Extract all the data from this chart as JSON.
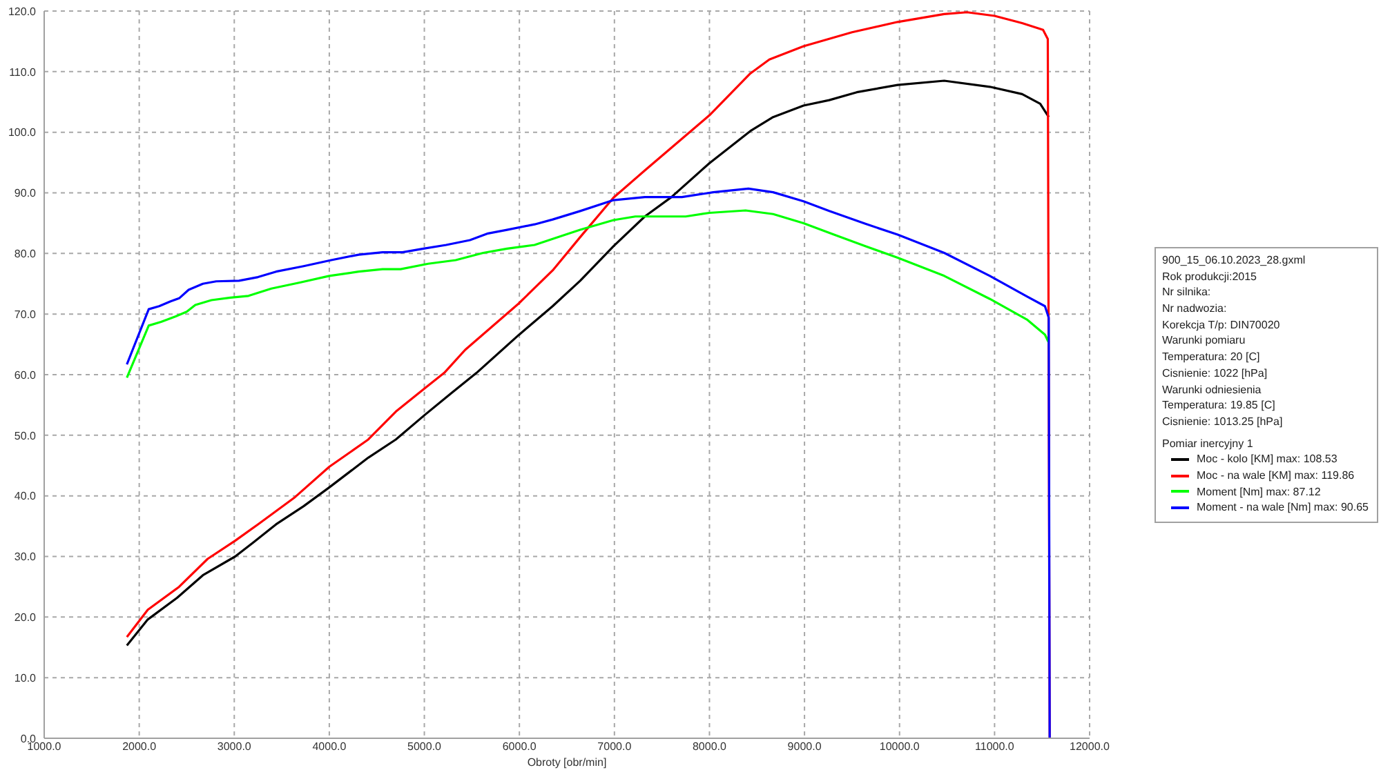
{
  "chart_data": {
    "type": "line",
    "xlabel": "Obroty [obr/min]",
    "xlim": [
      1000,
      12000
    ],
    "xticks": [
      {
        "value": 1000,
        "label": "1000.0"
      },
      {
        "value": 2000,
        "label": "2000.0"
      },
      {
        "value": 3000,
        "label": "3000.0"
      },
      {
        "value": 4000,
        "label": "4000.0"
      },
      {
        "value": 5000,
        "label": "5000.0"
      },
      {
        "value": 6000,
        "label": "6000.0"
      },
      {
        "value": 7000,
        "label": "7000.0"
      },
      {
        "value": 8000,
        "label": "8000.0"
      },
      {
        "value": 9000,
        "label": "9000.0"
      },
      {
        "value": 10000,
        "label": "10000.0"
      },
      {
        "value": 11000,
        "label": "11000.0"
      },
      {
        "value": 12000,
        "label": "12000.0"
      }
    ],
    "ylim": [
      0,
      120
    ],
    "yticks": [
      {
        "value": 0,
        "label": "0.0"
      },
      {
        "value": 10,
        "label": "10.0"
      },
      {
        "value": 20,
        "label": "20.0"
      },
      {
        "value": 30,
        "label": "30.0"
      },
      {
        "value": 40,
        "label": "40.0"
      },
      {
        "value": 50,
        "label": "50.0"
      },
      {
        "value": 60,
        "label": "60.0"
      },
      {
        "value": 70,
        "label": "70.0"
      },
      {
        "value": 80,
        "label": "80.0"
      },
      {
        "value": 90,
        "label": "90.0"
      },
      {
        "value": 100,
        "label": "100.0"
      },
      {
        "value": 110,
        "label": "110.0"
      },
      {
        "value": 120,
        "label": "120.0"
      }
    ],
    "grid": true,
    "legend": "right",
    "legend_title": "Pomiar inercyjny 1",
    "annotations": [
      "900_15_06.10.2023_28.gxml",
      "Rok produkcji:2015",
      "Nr silnika:",
      "Nr nadwozia:",
      "Korekcja T/p: DIN70020",
      "Warunki pomiaru",
      "Temperatura: 20 [C]",
      "Cisnienie: 1022 [hPa]",
      "Warunki odniesienia",
      "Temperatura: 19.85 [C]",
      "Cisnienie: 1013.25 [hPa]"
    ],
    "series": [
      {
        "name": "Moc - kolo [KM] max: 108.53",
        "color": "#000000",
        "x": [
          1870,
          2090,
          2400,
          2670,
          3010,
          3200,
          3440,
          3730,
          4000,
          4410,
          4700,
          5000,
          5280,
          5550,
          5990,
          6350,
          6640,
          6990,
          7320,
          7600,
          8000,
          8430,
          8670,
          8990,
          9260,
          9550,
          9980,
          10470,
          10950,
          11290,
          11480,
          11570
        ],
        "values": [
          15.3,
          19.6,
          23.2,
          26.9,
          30.0,
          32.3,
          35.3,
          38.3,
          41.4,
          46.3,
          49.3,
          53.3,
          56.9,
          60.3,
          66.5,
          71.3,
          75.5,
          81.2,
          86.1,
          89.3,
          94.9,
          100.2,
          102.5,
          104.4,
          105.3,
          106.6,
          107.8,
          108.5,
          107.5,
          106.3,
          104.7,
          102.5
        ]
      },
      {
        "name": "Moc - na wale [KM] max: 119.86",
        "color": "#ff0000",
        "x": [
          1870,
          2090,
          2420,
          2720,
          3010,
          3250,
          3640,
          4000,
          4410,
          4700,
          5000,
          5210,
          5430,
          5990,
          6350,
          6640,
          6990,
          7320,
          8000,
          8430,
          8630,
          8990,
          9500,
          9980,
          10470,
          10710,
          11000,
          11290,
          11510,
          11560,
          11580
        ],
        "values": [
          16.7,
          21.2,
          25.0,
          29.6,
          32.6,
          35.3,
          39.8,
          44.8,
          49.3,
          53.9,
          57.7,
          60.3,
          64.1,
          71.7,
          77.2,
          82.7,
          89.2,
          93.7,
          102.8,
          109.7,
          112.0,
          114.2,
          116.5,
          118.2,
          119.5,
          119.8,
          119.2,
          118.0,
          116.9,
          115.4,
          0
        ]
      },
      {
        "name": "Moment [Nm] max: 87.12",
        "color": "#00ff00",
        "x": [
          1870,
          2100,
          2230,
          2380,
          2500,
          2590,
          2760,
          2960,
          3150,
          3390,
          3690,
          4000,
          4310,
          4560,
          4750,
          5040,
          5330,
          5620,
          5870,
          6160,
          6350,
          6640,
          6990,
          7220,
          7750,
          8000,
          8380,
          8670,
          8990,
          9310,
          9640,
          9980,
          10470,
          10950,
          11340,
          11530,
          11570
        ],
        "values": [
          59.5,
          68.1,
          68.7,
          69.6,
          70.4,
          71.5,
          72.3,
          72.7,
          73.0,
          74.2,
          75.2,
          76.3,
          77.0,
          77.4,
          77.4,
          78.3,
          78.9,
          80.1,
          80.8,
          81.4,
          82.4,
          83.9,
          85.5,
          86.1,
          86.1,
          86.7,
          87.1,
          86.5,
          85.0,
          83.1,
          81.2,
          79.3,
          76.3,
          72.5,
          69.1,
          66.6,
          65.3
        ]
      },
      {
        "name": "Moment - na wale [Nm] max: 90.65",
        "color": "#0000ff",
        "x": [
          1870,
          2100,
          2210,
          2330,
          2420,
          2520,
          2670,
          2810,
          3050,
          3250,
          3440,
          3730,
          4020,
          4310,
          4560,
          4770,
          4990,
          5230,
          5480,
          5670,
          5870,
          6160,
          6350,
          6640,
          6990,
          7320,
          7710,
          8040,
          8410,
          8670,
          8990,
          9260,
          9640,
          9980,
          10470,
          10950,
          11340,
          11530,
          11570,
          11580
        ],
        "values": [
          61.7,
          70.8,
          71.3,
          72.1,
          72.6,
          74.0,
          75.0,
          75.4,
          75.5,
          76.1,
          77.0,
          77.9,
          78.9,
          79.8,
          80.2,
          80.2,
          80.8,
          81.4,
          82.2,
          83.3,
          83.9,
          84.8,
          85.6,
          87.0,
          88.8,
          89.3,
          89.3,
          90.1,
          90.7,
          90.1,
          88.6,
          87.0,
          84.9,
          83.1,
          80.1,
          76.3,
          72.9,
          71.3,
          69.4,
          0
        ]
      }
    ]
  }
}
